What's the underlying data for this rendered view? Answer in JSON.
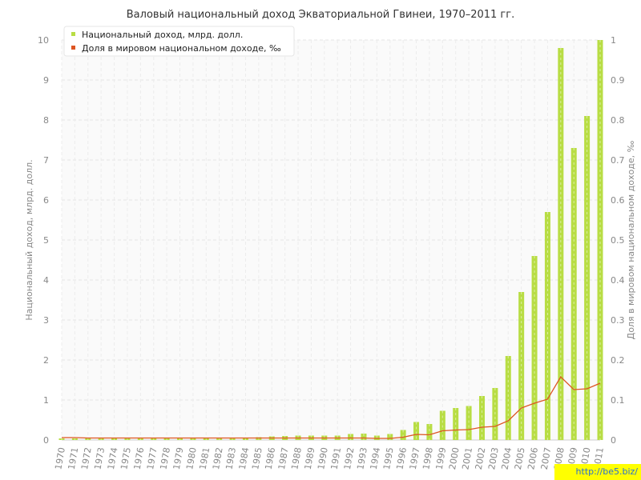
{
  "watermark": "http://be5.biz/",
  "chart_data": {
    "type": "bar",
    "title": "Валовый национальный доход Экваториальной Гвинеи, 1970–2011 гг.",
    "ylabel": "Национальный доход, млрд. долл.",
    "y2label": "Доля в мировом национальном доходе, ‰",
    "ylim": [
      0,
      10
    ],
    "y2lim": [
      0,
      1
    ],
    "yticks": [
      "0",
      "1",
      "2",
      "3",
      "4",
      "5",
      "6",
      "7",
      "8",
      "9",
      "10"
    ],
    "y2ticks": [
      "0",
      "0.1",
      "0.2",
      "0.3",
      "0.4",
      "0.5",
      "0.6",
      "0.7",
      "0.8",
      "0.9",
      "1"
    ],
    "grid": true,
    "legend_position": "top-left",
    "categories": [
      "1970",
      "1971",
      "1972",
      "1973",
      "1974",
      "1975",
      "1976",
      "1977",
      "1978",
      "1979",
      "1980",
      "1981",
      "1982",
      "1983",
      "1984",
      "1985",
      "1986",
      "1987",
      "1988",
      "1989",
      "1990",
      "1991",
      "1992",
      "1993",
      "1994",
      "1995",
      "1996",
      "1997",
      "1998",
      "1999",
      "2000",
      "2001",
      "2002",
      "2003",
      "2004",
      "2005",
      "2006",
      "2007",
      "2008",
      "2009",
      "2010",
      "2011"
    ],
    "series": [
      {
        "name": "Национальный доход, млрд. долл.",
        "type": "bar",
        "axis": "left",
        "color": "#b8dd44",
        "values": [
          0.04,
          0.04,
          0.04,
          0.04,
          0.04,
          0.05,
          0.05,
          0.05,
          0.05,
          0.05,
          0.05,
          0.05,
          0.06,
          0.06,
          0.06,
          0.07,
          0.09,
          0.1,
          0.11,
          0.11,
          0.11,
          0.11,
          0.15,
          0.16,
          0.11,
          0.15,
          0.25,
          0.45,
          0.4,
          0.73,
          0.8,
          0.85,
          1.1,
          1.3,
          2.1,
          3.7,
          4.6,
          5.7,
          9.8,
          7.3,
          8.1,
          10.0
        ]
      },
      {
        "name": "Доля в мировом национальном доходе, ‰",
        "type": "line",
        "axis": "right",
        "color": "#dd5522",
        "values": [
          0.006,
          0.006,
          0.005,
          0.005,
          0.005,
          0.005,
          0.005,
          0.005,
          0.005,
          0.005,
          0.005,
          0.005,
          0.005,
          0.005,
          0.005,
          0.005,
          0.005,
          0.005,
          0.005,
          0.005,
          0.005,
          0.005,
          0.005,
          0.005,
          0.004,
          0.004,
          0.007,
          0.014,
          0.013,
          0.023,
          0.025,
          0.026,
          0.032,
          0.034,
          0.048,
          0.08,
          0.092,
          0.102,
          0.158,
          0.126,
          0.128,
          0.142
        ]
      }
    ]
  }
}
